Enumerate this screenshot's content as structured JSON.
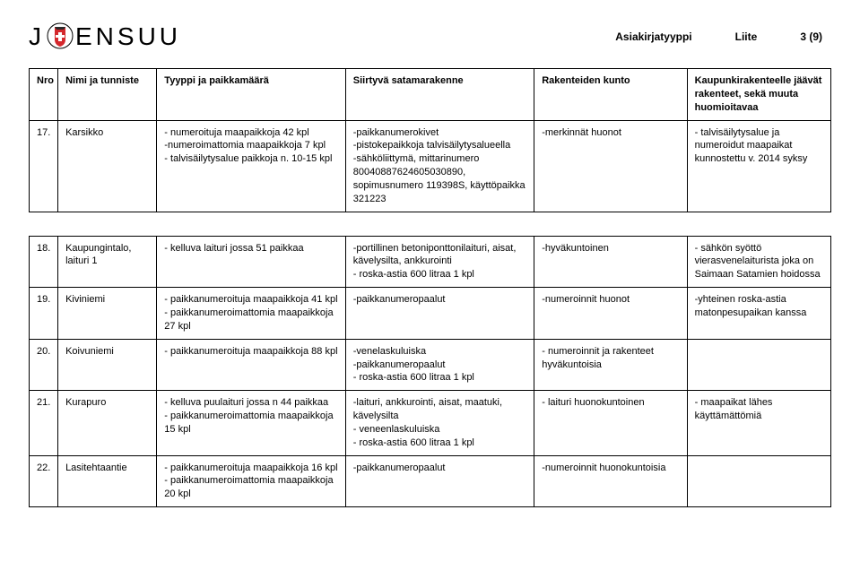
{
  "header": {
    "logo_left": "J",
    "logo_right": "ENSUU",
    "doc_type_label": "Asiakirjatyyppi",
    "doc_type_value": "Liite",
    "page": "3 (9)"
  },
  "columns": {
    "nro": "Nro",
    "nimi": "Nimi ja tunniste",
    "tyyppi": "Tyyppi ja paikkamäärä",
    "rakenne": "Siirtyvä satamarakenne",
    "kunto": "Rakenteiden kunto",
    "huomio": "Kaupunkirakenteelle jäävät rakenteet, sekä muuta huomioitavaa"
  },
  "rows_top": [
    {
      "nro": "17.",
      "nimi": "Karsikko",
      "tyyppi": "- numeroituja maapaikkoja 42 kpl\n-numeroimattomia maapaikkoja 7 kpl\n- talvisäilytysalue paikkoja n. 10-15 kpl",
      "rakenne": "-paikkanumerokivet\n-pistokepaikkoja talvisäilytysalueella\n-sähköliittymä, mittarinumero 80040887624605030890, sopimusnumero 119398S, käyttöpaikka 321223",
      "kunto": "-merkinnät huonot",
      "huomio": "- talvisäilytysalue ja numeroidut maapaikat kunnostettu v. 2014 syksy"
    }
  ],
  "rows_bottom": [
    {
      "nro": "18.",
      "nimi": "Kaupungintalo, laituri 1",
      "tyyppi": "- kelluva laituri jossa 51 paikkaa",
      "rakenne": "-portillinen betoniponttonilaituri, aisat, kävelysilta, ankkurointi\n- roska-astia 600 litraa 1 kpl",
      "kunto": "-hyväkuntoinen",
      "huomio": "- sähkön syöttö vierasvenelaiturista joka on Saimaan Satamien hoidossa"
    },
    {
      "nro": "19.",
      "nimi": "Kiviniemi",
      "tyyppi": "- paikkanumeroituja maapaikkoja 41 kpl\n- paikkanumeroimattomia maapaikkoja 27 kpl",
      "rakenne": "-paikkanumeropaalut",
      "kunto": "-numeroinnit huonot",
      "huomio": "-yhteinen roska-astia matonpesupaikan kanssa"
    },
    {
      "nro": "20.",
      "nimi": "Koivuniemi",
      "tyyppi": "- paikkanumeroituja maapaikkoja 88 kpl",
      "rakenne": "-venelaskuluiska\n-paikkanumeropaalut\n- roska-astia 600 litraa 1 kpl",
      "kunto": "- numeroinnit ja rakenteet hyväkuntoisia",
      "huomio": ""
    },
    {
      "nro": "21.",
      "nimi": "Kurapuro",
      "tyyppi": "- kelluva puulaituri jossa n 44 paikkaa\n- paikkanumeroimattomia maapaikkoja 15 kpl",
      "rakenne": "-laituri, ankkurointi, aisat, maatuki, kävelysilta\n- veneenlaskuluiska\n- roska-astia 600 litraa 1 kpl",
      "kunto": "- laituri huonokuntoinen",
      "huomio": "- maapaikat lähes käyttämättömiä"
    },
    {
      "nro": "22.",
      "nimi": "Lasitehtaantie",
      "tyyppi": "- paikkanumeroituja maapaikkoja 16 kpl\n- paikkanumeroimattomia maapaikkoja 20 kpl",
      "rakenne": "-paikkanumeropaalut",
      "kunto": "-numeroinnit huonokuntoisia",
      "huomio": ""
    }
  ],
  "colors": {
    "text": "#000000",
    "background": "#ffffff",
    "border": "#000000",
    "shield_red": "#d4282d",
    "shield_dark": "#2a2a2a"
  }
}
